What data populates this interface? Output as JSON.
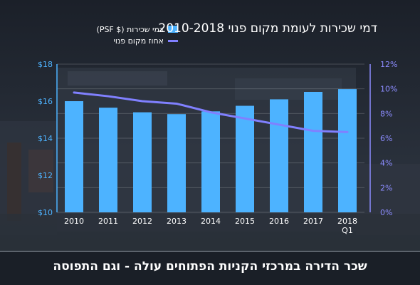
{
  "title": "דמי שכירות לעומת מקום פנוי  2010-2018",
  "caption": "שכר הדירה במרכזי הקניות הפתוחים עולה - וגם התפוסה",
  "colors": {
    "bar": "#4db3ff",
    "line": "#8080ff",
    "left_axis": "#4db3ff",
    "right_axis": "#8c8cff"
  },
  "chart_data": {
    "type": "bar",
    "categories": [
      "2010",
      "2011",
      "2012",
      "2013",
      "2014",
      "2015",
      "2016",
      "2017",
      "2018 Q1"
    ],
    "series": [
      {
        "name": "דמי שכירות ($ PSF)",
        "type": "bar",
        "axis": "left",
        "values": [
          16.0,
          15.65,
          15.4,
          15.3,
          15.45,
          15.75,
          16.1,
          16.5,
          16.65
        ]
      },
      {
        "name": "אחוז מקום פנוי",
        "type": "line",
        "axis": "right",
        "values": [
          9.7,
          9.4,
          9.0,
          8.8,
          8.1,
          7.6,
          7.1,
          6.6,
          6.5
        ]
      }
    ],
    "y_left": {
      "min": 10,
      "max": 18,
      "ticks": [
        "$10",
        "$12",
        "$14",
        "$16",
        "$18"
      ]
    },
    "y_right": {
      "min": 0,
      "max": 12,
      "ticks": [
        "0%",
        "2%",
        "4%",
        "6%",
        "8%",
        "10%",
        "12%"
      ]
    },
    "grid": true,
    "legend": "top-left"
  }
}
